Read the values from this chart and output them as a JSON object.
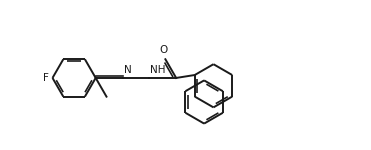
{
  "background_color": "#ffffff",
  "line_color": "#1a1a1a",
  "line_width": 1.4,
  "dbo": 0.018,
  "figsize": [
    3.71,
    1.5
  ],
  "dpi": 100,
  "xlim": [
    0,
    3.71
  ],
  "ylim": [
    0,
    1.5
  ]
}
